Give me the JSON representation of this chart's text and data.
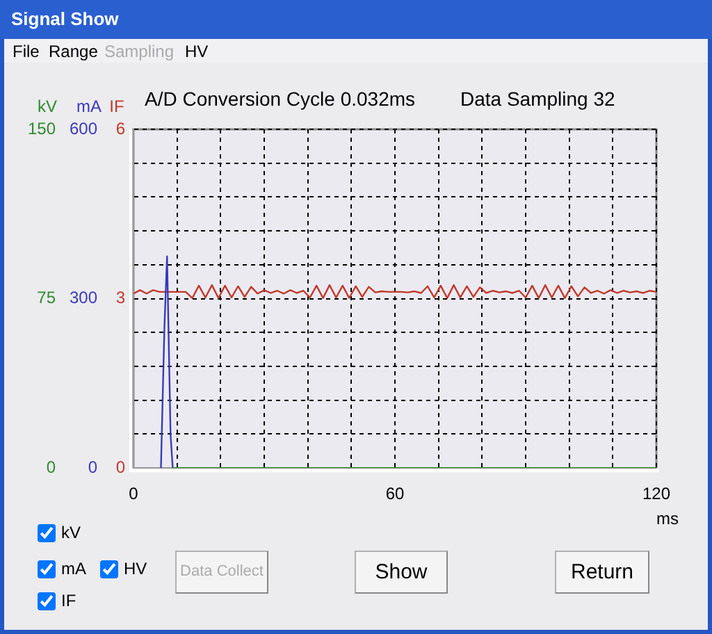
{
  "chart_data": {
    "type": "line",
    "title": "A/D Conversion Cycle 0.032ms",
    "subtitle": "Data Sampling 32",
    "xlabel": "ms",
    "ylabel": "kV",
    "y2label": "mA",
    "y3label": "IF",
    "xlim": [
      0,
      120
    ],
    "xticks": [
      0,
      {
        "value": 10,
        "label": null
      },
      {
        "value": 20,
        "label": null
      },
      {
        "value": 30,
        "label": null
      },
      {
        "value": 40,
        "label": null
      },
      {
        "value": 50,
        "label": null
      },
      60,
      {
        "value": 70,
        "label": null
      },
      {
        "value": 80,
        "label": null
      },
      {
        "value": 90,
        "label": null
      },
      {
        "value": 100,
        "label": null
      },
      {
        "value": 110,
        "label": null
      },
      120
    ],
    "ylim": [
      0,
      150
    ],
    "yticks": [
      0,
      75,
      150
    ],
    "y2lim": [
      0,
      600
    ],
    "y2ticks": [
      0,
      300,
      600
    ],
    "y3lim": [
      0,
      6
    ],
    "y3ticks": [
      0,
      {
        "value": 0.6,
        "label": null
      },
      {
        "value": 1.2,
        "label": null
      },
      {
        "value": 1.8,
        "label": null
      },
      {
        "value": 2.4,
        "label": null
      },
      3,
      {
        "value": 3.6,
        "label": null
      },
      {
        "value": 4.2,
        "label": null
      },
      {
        "value": 4.8,
        "label": null
      },
      {
        "value": 5.4,
        "label": null
      },
      6
    ],
    "grid": true,
    "marker": "none",
    "line_style": "solid",
    "x": [
      0,
      1.5,
      3,
      4.5,
      6,
      7.5,
      9,
      10.5,
      12,
      13.5,
      15,
      16.5,
      18,
      19.5,
      21,
      22.5,
      24,
      25.5,
      27,
      28.5,
      30,
      31.5,
      33,
      34.5,
      36,
      37.5,
      39,
      40.5,
      42,
      43.5,
      45,
      46.5,
      48,
      49.5,
      51,
      52.5,
      54,
      55.5,
      57,
      58.5,
      60,
      61.5,
      63,
      64.5,
      66,
      67.5,
      69,
      70.5,
      72,
      73.5,
      75,
      76.5,
      78,
      79.5,
      81,
      82.5,
      84,
      85.5,
      87,
      88.5,
      90,
      91.5,
      93,
      94.5,
      96,
      97.5,
      99,
      100.5,
      102,
      103.5,
      105,
      106.5,
      108,
      109.5,
      111,
      112.5,
      114,
      115.5,
      117,
      118.5,
      120
    ],
    "series": [
      {
        "color": "#2e8b2e",
        "axis": "y",
        "x": [
          9,
          120
        ],
        "values": [
          0,
          0
        ]
      },
      {
        "color": "#3a3ab8",
        "axis": "y2",
        "x": [
          6.3,
          7.1,
          7.7,
          8.0,
          8.5,
          9.0
        ],
        "values": [
          0,
          250,
          375,
          260,
          60,
          0
        ]
      },
      {
        "color": "#c0392b",
        "axis": "y3",
        "values": [
          3.09,
          3.15,
          3.09,
          3.15,
          3.12,
          3.12,
          3.12,
          3.12,
          3.12,
          3.01,
          3.23,
          3.02,
          3.24,
          3.01,
          3.23,
          3.02,
          3.22,
          3.03,
          3.21,
          3.09,
          3.15,
          3.1,
          3.14,
          3.09,
          3.15,
          3.1,
          3.14,
          3.02,
          3.23,
          3.01,
          3.24,
          3.02,
          3.23,
          3.01,
          3.22,
          3.03,
          3.21,
          3.11,
          3.13,
          3.12,
          3.12,
          3.12,
          3.11,
          3.13,
          3.1,
          3.22,
          3.02,
          3.23,
          3.01,
          3.24,
          3.02,
          3.22,
          3.03,
          3.2,
          3.1,
          3.14,
          3.11,
          3.13,
          3.1,
          3.14,
          3.02,
          3.23,
          3.01,
          3.24,
          3.02,
          3.23,
          3.01,
          3.22,
          3.04,
          3.2,
          3.1,
          3.14,
          3.09,
          3.15,
          3.1,
          3.14,
          3.11,
          3.13,
          3.1,
          3.14,
          3.12
        ]
      }
    ],
    "annotations": [
      "Signal Show",
      "File",
      "Range",
      "Sampling",
      "HV",
      "kV",
      "mA",
      "HV",
      "IF",
      "Data Collect",
      "Show",
      "Return"
    ]
  }
}
